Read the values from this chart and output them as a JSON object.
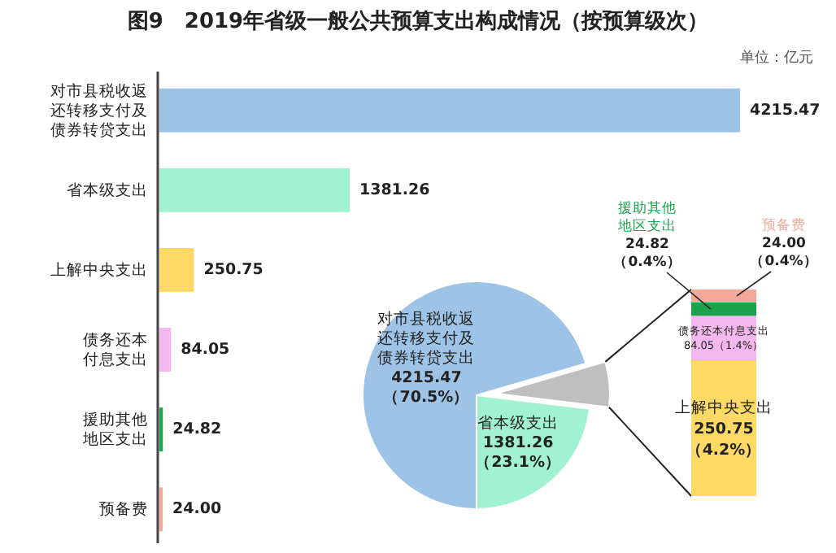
{
  "chart_data": [
    {
      "type": "bar",
      "orientation": "horizontal",
      "title": "图9　2019年省级一般公共预算支出构成情况（按预算级次）",
      "annotations": [
        "单位：亿元"
      ],
      "categories": [
        "对市县税收返还转移支付及债券转贷支出",
        "省本级支出",
        "上解中央支出",
        "债务还本付息支出",
        "援助其他地区支出",
        "预备费"
      ],
      "values": [
        4215.47,
        1381.26,
        250.75,
        84.05,
        24.82,
        24.0
      ],
      "colors": [
        "#9dc3e6",
        "#a0f2d2",
        "#ffd966",
        "#f4b8ef",
        "#1aa34a",
        "#f2a99c"
      ],
      "value_labels": [
        "4215.47",
        "1381.26",
        "250.75",
        "84.05",
        "24.82",
        "24.00"
      ]
    },
    {
      "type": "pie",
      "categories": [
        "对市县税收返还转移支付及债券转贷支出",
        null,
        "省本级支出"
      ],
      "values": [
        4215.47,
        383.62,
        1381.26
      ],
      "colors": [
        "#9dc3e6",
        "#bfbfbf",
        "#a0f2d2"
      ],
      "value_labels": [
        "4215.47\n（70.5%）",
        null,
        "1381.26\n（23.1%）"
      ]
    },
    {
      "type": "bar",
      "stacked": true,
      "categories": [
        null
      ],
      "series": [
        {
          "name": "上解中央支出",
          "color": "#ffd966",
          "values": [
            250.75
          ],
          "value_labels": [
            "250.75\n（4.2%）"
          ]
        },
        {
          "name": "债务还本付息支出",
          "color": "#f4b8ef",
          "values": [
            84.05
          ],
          "value_labels": [
            "84.05（1.4%）"
          ]
        },
        {
          "name": "援助其他地区支出",
          "color": "#1aa34a",
          "values": [
            24.82
          ],
          "value_labels": [
            "24.82\n（0.4%）"
          ]
        },
        {
          "name": "预备费",
          "color": "#f2a99c",
          "values": [
            24.0
          ],
          "value_labels": [
            "24.00\n（0.4%）"
          ]
        }
      ]
    }
  ]
}
